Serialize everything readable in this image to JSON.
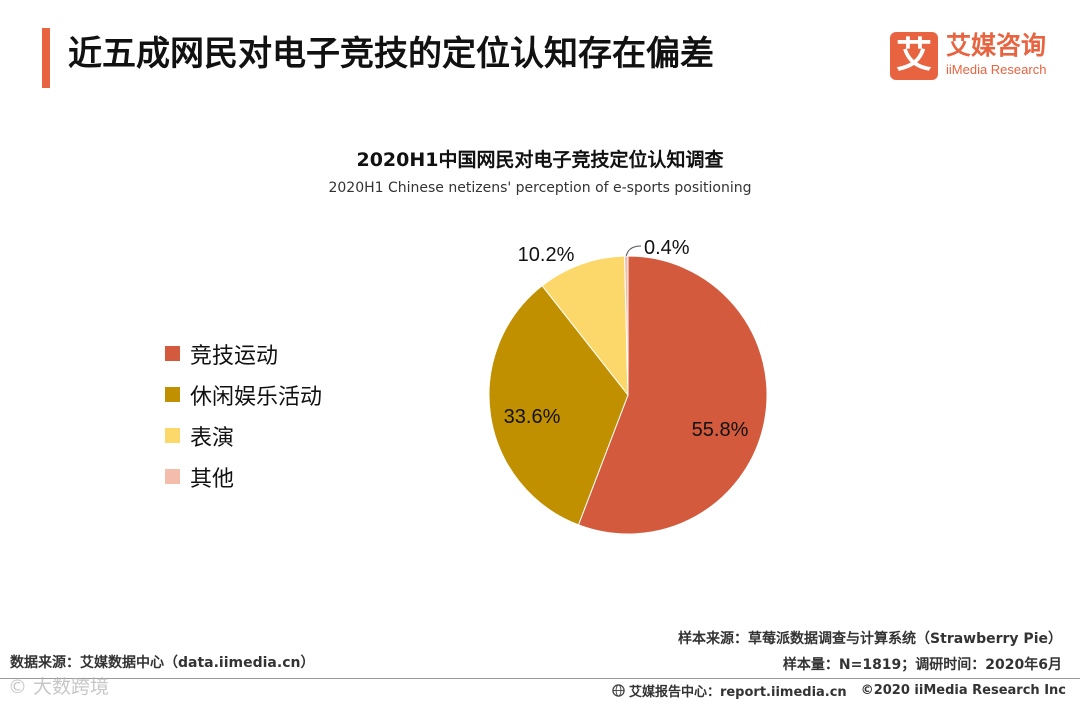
{
  "header": {
    "title": "近五成网民对电子竞技的定位认知存在偏差",
    "logo_mark": "艾",
    "logo_cn": "艾媒咨询",
    "logo_en": "iiMedia Research"
  },
  "colors": {
    "accent": "#e8633f",
    "slice_1": "#d35a3d",
    "slice_2": "#c09000",
    "slice_3": "#fcd86a",
    "slice_4": "#f4bcaa"
  },
  "chart_data": {
    "type": "pie",
    "title": "2020H1中国网民对电子竞技定位认知调查",
    "subtitle": "2020H1 Chinese netizens' perception of e-sports positioning",
    "categories": [
      "竞技运动",
      "休闲娱乐活动",
      "表演",
      "其他"
    ],
    "values": [
      55.8,
      33.6,
      10.2,
      0.4
    ],
    "labels": [
      "55.8%",
      "33.6%",
      "10.2%",
      "0.4%"
    ],
    "legend_position": "left"
  },
  "footer": {
    "data_source": "数据来源：艾媒数据中心（data.iimedia.cn）",
    "sample_source": "样本来源：草莓派数据调查与计算系统（Strawberry Pie）",
    "sample_info": "样本量：N=1819；调研时间：2020年6月",
    "report_center": "艾媒报告中心：report.iimedia.cn",
    "copyright": "©2020  iiMedia Research  Inc",
    "watermark": "© 大数跨境"
  }
}
